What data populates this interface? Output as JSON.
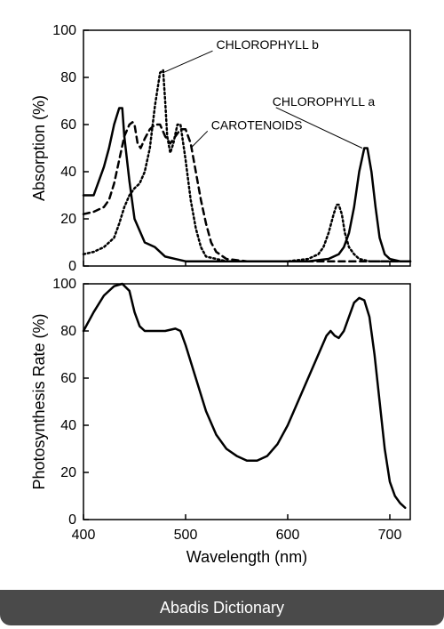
{
  "footer": {
    "label": "Abadis Dictionary"
  },
  "global": {
    "x_label": "Wavelength (nm)",
    "x_min": 400,
    "x_max": 720,
    "x_ticks": [
      400,
      500,
      600,
      700
    ],
    "font_family": "Arial, Helvetica, sans-serif",
    "axis_color": "#000000",
    "background": "#ffffff",
    "tick_fontsize": 16,
    "label_fontsize": 18,
    "annotation_fontsize": 14
  },
  "top_chart": {
    "type": "line",
    "y_label": "Absorption (%)",
    "y_min": 0,
    "y_max": 100,
    "y_ticks": [
      0,
      20,
      40,
      60,
      80,
      100
    ],
    "line_color": "#000000",
    "line_width": 2.5,
    "series": {
      "chlorophyll_a": {
        "label": "CHLOROPHYLL a",
        "style": "solid",
        "dash": "",
        "data": [
          [
            400,
            30
          ],
          [
            410,
            30
          ],
          [
            420,
            42
          ],
          [
            425,
            50
          ],
          [
            430,
            60
          ],
          [
            435,
            67
          ],
          [
            438,
            67
          ],
          [
            440,
            55
          ],
          [
            445,
            36
          ],
          [
            450,
            20
          ],
          [
            460,
            10
          ],
          [
            470,
            8
          ],
          [
            480,
            4
          ],
          [
            490,
            3
          ],
          [
            500,
            2
          ],
          [
            520,
            2
          ],
          [
            540,
            2
          ],
          [
            560,
            2
          ],
          [
            580,
            2
          ],
          [
            600,
            2
          ],
          [
            620,
            2
          ],
          [
            640,
            3
          ],
          [
            650,
            5
          ],
          [
            655,
            8
          ],
          [
            660,
            14
          ],
          [
            665,
            25
          ],
          [
            670,
            40
          ],
          [
            675,
            50
          ],
          [
            678,
            50
          ],
          [
            682,
            40
          ],
          [
            686,
            25
          ],
          [
            690,
            12
          ],
          [
            695,
            5
          ],
          [
            700,
            3
          ],
          [
            710,
            2
          ],
          [
            720,
            2
          ]
        ],
        "annotation": {
          "x": 585,
          "y": 68,
          "to_x": 673,
          "to_y": 50
        }
      },
      "chlorophyll_b": {
        "label": "CHLOROPHYLL b",
        "style": "dotted",
        "dash": "2 3",
        "data": [
          [
            400,
            5
          ],
          [
            410,
            6
          ],
          [
            420,
            8
          ],
          [
            430,
            12
          ],
          [
            435,
            18
          ],
          [
            440,
            25
          ],
          [
            445,
            30
          ],
          [
            450,
            33
          ],
          [
            455,
            35
          ],
          [
            460,
            40
          ],
          [
            465,
            50
          ],
          [
            470,
            68
          ],
          [
            475,
            82
          ],
          [
            478,
            83
          ],
          [
            480,
            70
          ],
          [
            482,
            55
          ],
          [
            485,
            48
          ],
          [
            488,
            52
          ],
          [
            492,
            60
          ],
          [
            495,
            60
          ],
          [
            500,
            45
          ],
          [
            505,
            28
          ],
          [
            510,
            16
          ],
          [
            515,
            8
          ],
          [
            520,
            4
          ],
          [
            540,
            2
          ],
          [
            560,
            2
          ],
          [
            580,
            2
          ],
          [
            600,
            2
          ],
          [
            620,
            3
          ],
          [
            630,
            5
          ],
          [
            635,
            8
          ],
          [
            640,
            14
          ],
          [
            645,
            22
          ],
          [
            648,
            26
          ],
          [
            650,
            26
          ],
          [
            653,
            22
          ],
          [
            656,
            14
          ],
          [
            660,
            8
          ],
          [
            665,
            5
          ],
          [
            670,
            3
          ],
          [
            680,
            2
          ],
          [
            700,
            2
          ],
          [
            720,
            2
          ]
        ],
        "annotation": {
          "x": 530,
          "y": 92,
          "to_x": 478,
          "to_y": 82
        }
      },
      "carotenoids": {
        "label": "CAROTENOIDS",
        "style": "dashed",
        "dash": "7 5",
        "data": [
          [
            400,
            22
          ],
          [
            410,
            23
          ],
          [
            420,
            25
          ],
          [
            425,
            28
          ],
          [
            430,
            35
          ],
          [
            435,
            45
          ],
          [
            440,
            55
          ],
          [
            445,
            60
          ],
          [
            448,
            61
          ],
          [
            450,
            60
          ],
          [
            453,
            52
          ],
          [
            456,
            50
          ],
          [
            460,
            54
          ],
          [
            465,
            58
          ],
          [
            470,
            60
          ],
          [
            475,
            60
          ],
          [
            480,
            55
          ],
          [
            485,
            52
          ],
          [
            490,
            55
          ],
          [
            495,
            58
          ],
          [
            500,
            58
          ],
          [
            505,
            52
          ],
          [
            510,
            40
          ],
          [
            515,
            28
          ],
          [
            520,
            18
          ],
          [
            525,
            10
          ],
          [
            530,
            6
          ],
          [
            540,
            3
          ],
          [
            560,
            2
          ],
          [
            580,
            2
          ],
          [
            600,
            2
          ],
          [
            620,
            2
          ],
          [
            640,
            2
          ],
          [
            660,
            2
          ],
          [
            680,
            2
          ],
          [
            700,
            2
          ],
          [
            720,
            2
          ]
        ],
        "annotation": {
          "x": 525,
          "y": 58,
          "to_x": 505,
          "to_y": 50
        }
      }
    }
  },
  "bottom_chart": {
    "type": "line",
    "y_label": "Photosynthesis Rate (%)",
    "y_min": 0,
    "y_max": 100,
    "y_ticks": [
      0,
      20,
      40,
      60,
      80,
      100
    ],
    "line_color": "#000000",
    "line_width": 2.5,
    "series": {
      "rate": {
        "style": "solid",
        "dash": "",
        "data": [
          [
            400,
            80
          ],
          [
            410,
            88
          ],
          [
            420,
            95
          ],
          [
            430,
            99
          ],
          [
            438,
            100
          ],
          [
            445,
            97
          ],
          [
            450,
            88
          ],
          [
            455,
            82
          ],
          [
            460,
            80
          ],
          [
            470,
            80
          ],
          [
            480,
            80
          ],
          [
            490,
            81
          ],
          [
            495,
            80
          ],
          [
            500,
            74
          ],
          [
            510,
            60
          ],
          [
            520,
            46
          ],
          [
            530,
            36
          ],
          [
            540,
            30
          ],
          [
            550,
            27
          ],
          [
            560,
            25
          ],
          [
            570,
            25
          ],
          [
            580,
            27
          ],
          [
            590,
            32
          ],
          [
            600,
            40
          ],
          [
            610,
            50
          ],
          [
            620,
            60
          ],
          [
            630,
            70
          ],
          [
            638,
            78
          ],
          [
            642,
            80
          ],
          [
            646,
            78
          ],
          [
            650,
            77
          ],
          [
            655,
            80
          ],
          [
            660,
            86
          ],
          [
            665,
            92
          ],
          [
            670,
            94
          ],
          [
            675,
            93
          ],
          [
            680,
            86
          ],
          [
            685,
            70
          ],
          [
            690,
            50
          ],
          [
            695,
            30
          ],
          [
            700,
            16
          ],
          [
            705,
            10
          ],
          [
            710,
            7
          ],
          [
            715,
            5
          ]
        ]
      }
    }
  }
}
